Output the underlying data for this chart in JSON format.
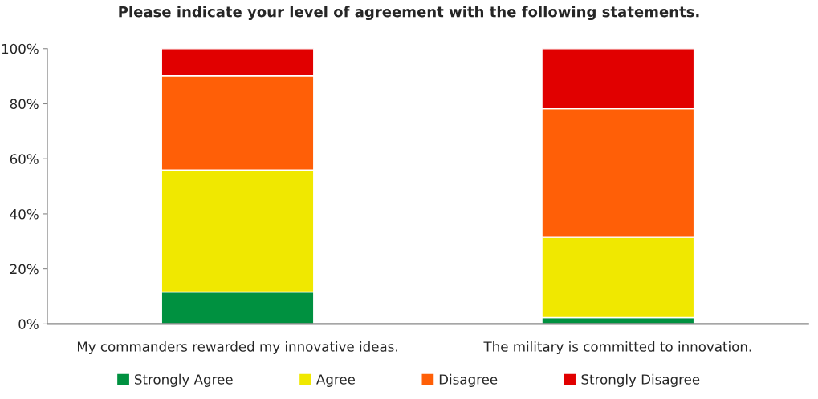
{
  "chart_data": {
    "type": "bar",
    "title": "Please indicate your level of agreement with the following statements.",
    "categories": [
      "My commanders rewarded my innovative ideas.",
      "The military is committed to innovation."
    ],
    "stacked": true,
    "series": [
      {
        "name": "Strongly Agree",
        "color": "#009140",
        "values": [
          11.6,
          2.3
        ]
      },
      {
        "name": "Agree",
        "color": "#f0e800",
        "values": [
          44.3,
          29.2
        ]
      },
      {
        "name": "Disagree",
        "color": "#ff5f07",
        "values": [
          34.2,
          46.7
        ]
      },
      {
        "name": "Strongly Disagree",
        "color": "#e10000",
        "values": [
          9.9,
          21.8
        ]
      }
    ],
    "ylim": [
      0,
      100
    ],
    "yticks": [
      {
        "value": 0,
        "label": "0%"
      },
      {
        "value": 20,
        "label": "20%"
      },
      {
        "value": 40,
        "label": "40%"
      },
      {
        "value": 60,
        "label": "60%"
      },
      {
        "value": 80,
        "label": "80%"
      },
      {
        "value": 100,
        "label": "100%"
      }
    ],
    "grid": false,
    "legend": "bottom"
  }
}
